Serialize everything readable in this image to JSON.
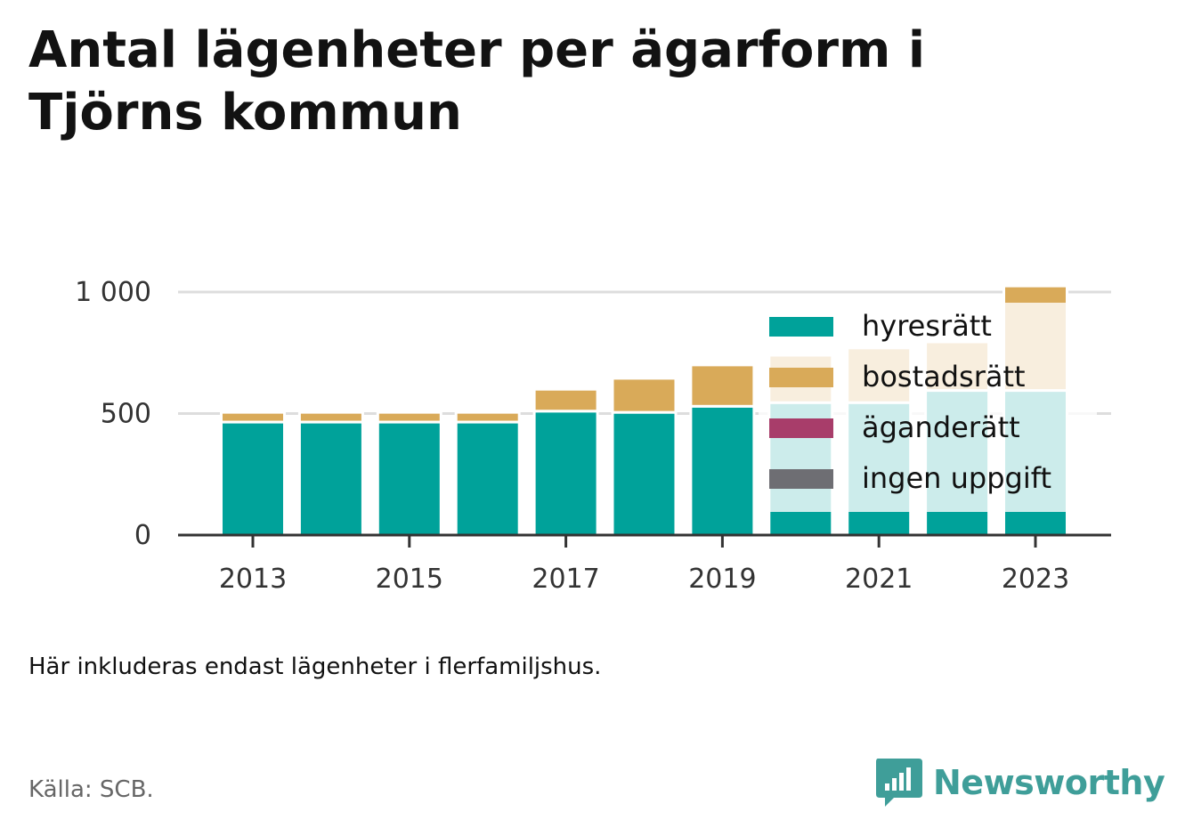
{
  "title": "Antal lägenheter per ägarform i Tjörns kommun",
  "note": "Här inkluderas endast lägenheter i flerfamiljshus.",
  "source": "Källa: SCB.",
  "brand": "Newsworthy",
  "colors": {
    "hyresratt": "#00a29a",
    "bostadsratt": "#d9aa59",
    "aganderatt": "#a83d6a",
    "ingen_uppgift": "#6e6e73",
    "grid": "#dddddd",
    "axis": "#333333",
    "brand": "#3f9e99"
  },
  "chart_data": {
    "type": "bar",
    "stacked": true,
    "categories": [
      "2013",
      "2014",
      "2015",
      "2016",
      "2017",
      "2018",
      "2019",
      "2020",
      "2021",
      "2022",
      "2023"
    ],
    "x_tick_labels": [
      "2013",
      "2015",
      "2017",
      "2019",
      "2021",
      "2023"
    ],
    "series": [
      {
        "name": "hyresrätt",
        "color": "#00a29a",
        "values": [
          465,
          465,
          465,
          465,
          510,
          505,
          530,
          545,
          545,
          595,
          595
        ]
      },
      {
        "name": "bostadsrätt",
        "color": "#d9aa59",
        "values": [
          40,
          40,
          40,
          40,
          90,
          140,
          170,
          195,
          225,
          200,
          430
        ]
      },
      {
        "name": "äganderätt",
        "color": "#a83d6a",
        "values": [
          0,
          0,
          0,
          0,
          0,
          0,
          0,
          0,
          0,
          0,
          0
        ]
      },
      {
        "name": "ingen uppgift",
        "color": "#6e6e73",
        "values": [
          0,
          0,
          0,
          0,
          0,
          0,
          0,
          0,
          0,
          0,
          0
        ]
      }
    ],
    "y_ticks": [
      0,
      500,
      1000
    ],
    "y_tick_labels": [
      "0",
      "500",
      "1 000"
    ],
    "ylim": [
      0,
      1000
    ],
    "grid": true,
    "legend": {
      "position": "top-right",
      "entries": [
        "hyresrätt",
        "bostadsrätt",
        "äganderätt",
        "ingen uppgift"
      ]
    }
  }
}
